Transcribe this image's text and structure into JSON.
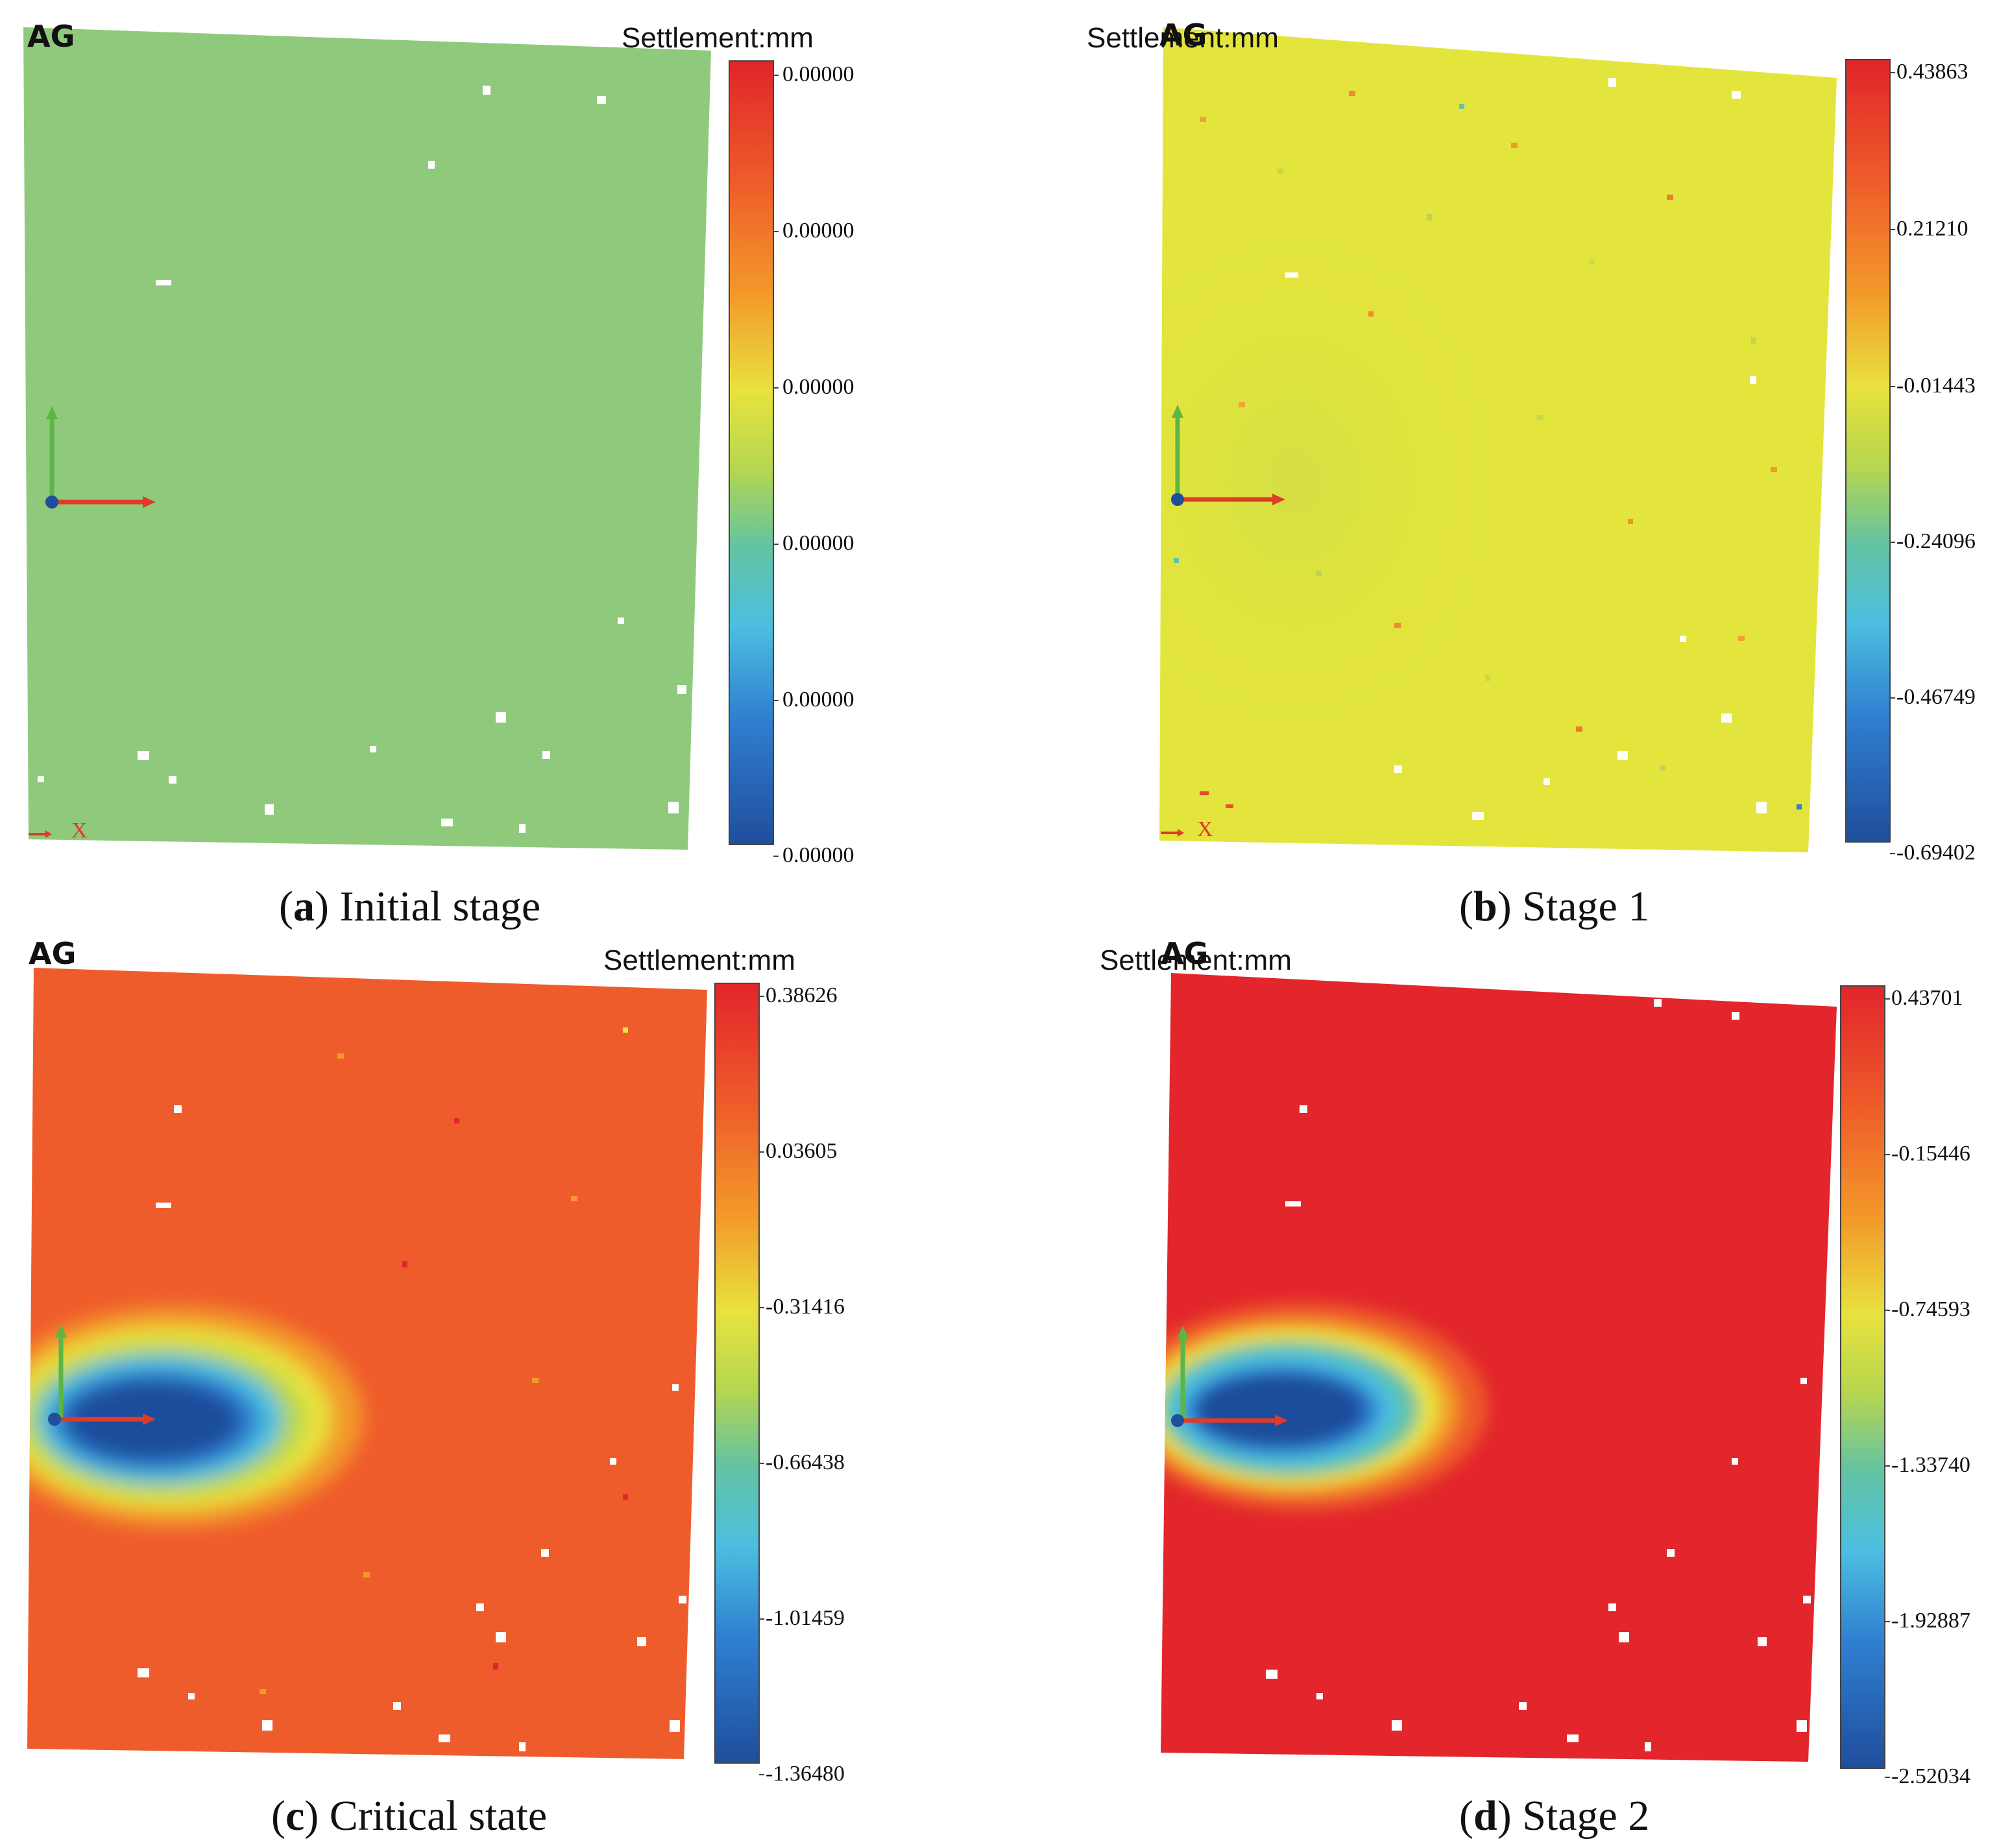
{
  "colors": {
    "scale": [
      "#1f4e9c",
      "#2f7fd0",
      "#4cbfe0",
      "#63c3a2",
      "#b6d64f",
      "#e8e23e",
      "#f39a2a",
      "#ee5a2a",
      "#e1252b"
    ],
    "axis_x": "#e03a2a",
    "axis_y": "#5db545",
    "axis_z": "#1f4e9c"
  },
  "chart_data": [
    {
      "type": "heatmap",
      "panel_letter": "a",
      "title": "Initial stage",
      "legend_title": "Settlement:mm",
      "colorbar_ticks": [
        "0.00000",
        "0.00000",
        "0.00000",
        "0.00000",
        "0.00000",
        "0.00000"
      ],
      "color_range": [
        0,
        0
      ],
      "dominant_color": "#8fca7c",
      "depression": null,
      "axis_label": "X"
    },
    {
      "type": "heatmap",
      "panel_letter": "b",
      "title": "Stage 1",
      "legend_title": "Settlement:mm",
      "colorbar_ticks": [
        "0.43863",
        "0.21210",
        "-0.01443",
        "-0.24096",
        "-0.46749",
        "-0.69402"
      ],
      "color_range": [
        -0.69402,
        0.43863
      ],
      "dominant_color": "#e3e53c",
      "depression": null,
      "axis_label": "X"
    },
    {
      "type": "heatmap",
      "panel_letter": "c",
      "title": "Critical state",
      "legend_title": "Settlement:mm",
      "colorbar_ticks": [
        "0.38626",
        "0.03605",
        "-0.31416",
        "-0.66438",
        "-1.01459",
        "-1.36480"
      ],
      "color_range": [
        -1.3648,
        0.38626
      ],
      "dominant_color": "#ef5c2c",
      "depression": "elliptical settlement zone near left edge, minimum about -1.36",
      "axis_label": ""
    },
    {
      "type": "heatmap",
      "panel_letter": "d",
      "title": "Stage 2",
      "legend_title": "Settlement:mm",
      "colorbar_ticks": [
        "0.43701",
        "-0.15446",
        "-0.74593",
        "-1.33740",
        "-1.92887",
        "-2.52034"
      ],
      "color_range": [
        -2.52034,
        0.43701
      ],
      "dominant_color": "#e2262b",
      "depression": "elliptical settlement zone near left edge, minimum about -2.52",
      "axis_label": ""
    }
  ]
}
